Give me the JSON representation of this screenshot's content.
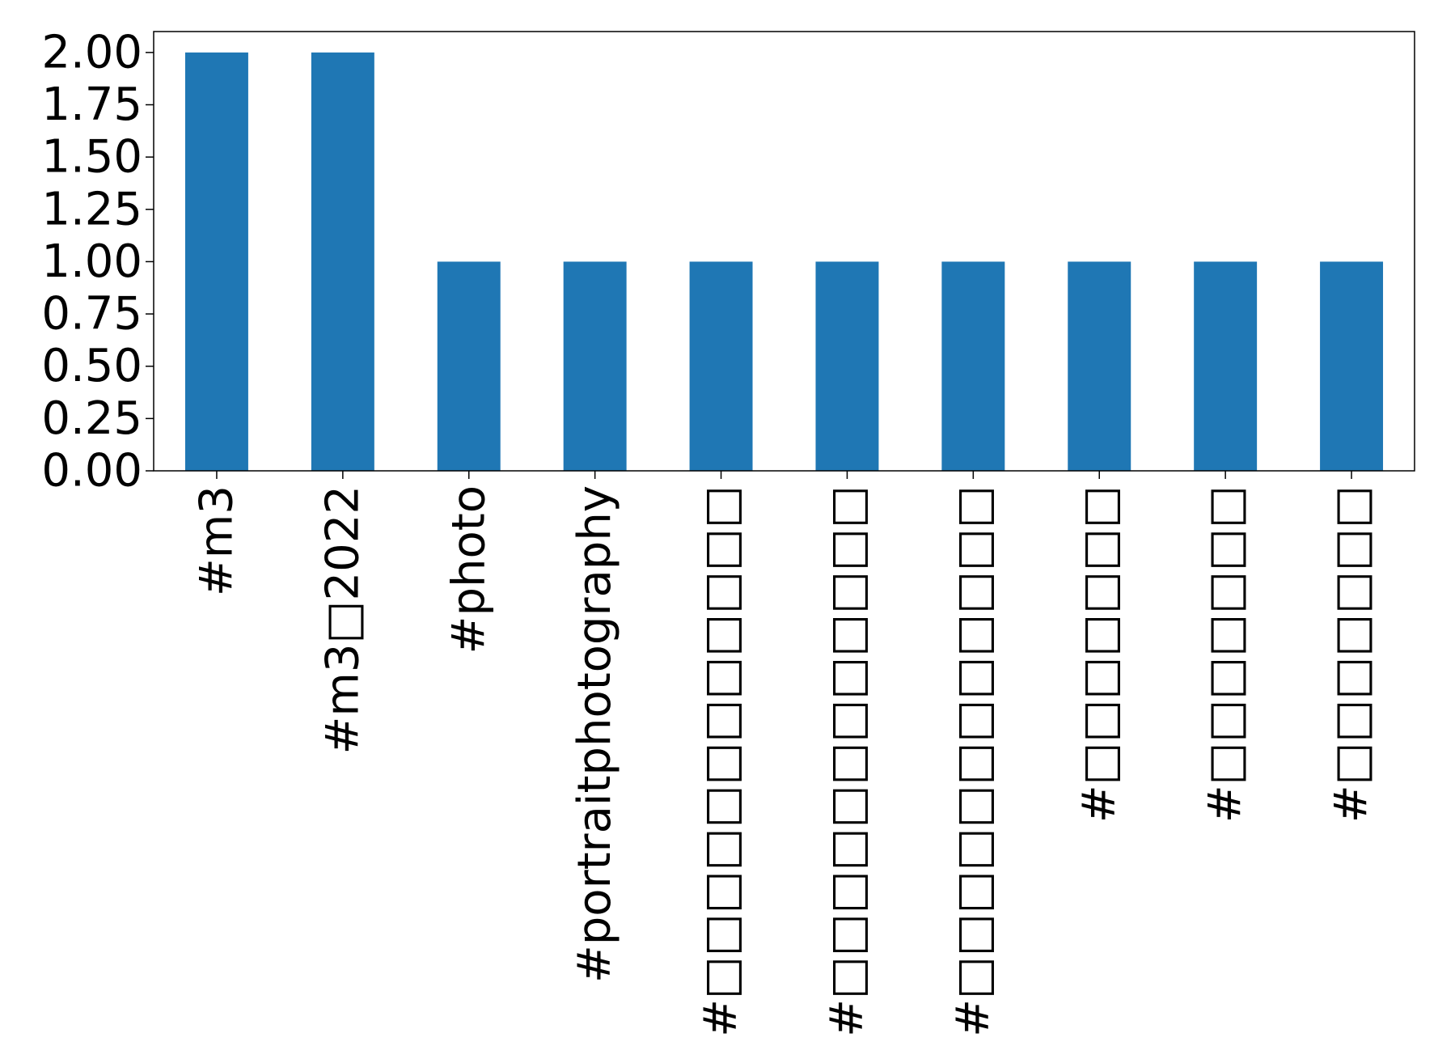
{
  "chart_data": {
    "type": "bar",
    "title": "",
    "xlabel": "",
    "ylabel": "",
    "categories": [
      "#m3",
      "#m3□2022",
      "#photo",
      "#portraitphotography",
      "#□□□□□□□□□□□□",
      "#□□□□□□□□□□□□",
      "#□□□□□□□□□□□□",
      "#□□□□□□□",
      "#□□□□□□□",
      "#□□□□□□□"
    ],
    "values": [
      2,
      2,
      1,
      1,
      1,
      1,
      1,
      1,
      1,
      1
    ],
    "ylim": [
      0,
      2.1
    ],
    "yticks": [
      "0.00",
      "0.25",
      "0.50",
      "0.75",
      "1.00",
      "1.25",
      "1.50",
      "1.75",
      "2.00"
    ],
    "ytick_values": [
      0,
      0.25,
      0.5,
      0.75,
      1.0,
      1.25,
      1.5,
      1.75,
      2.0
    ],
    "bar_color": "#1f77b4",
    "grid": false,
    "legend": "none"
  }
}
